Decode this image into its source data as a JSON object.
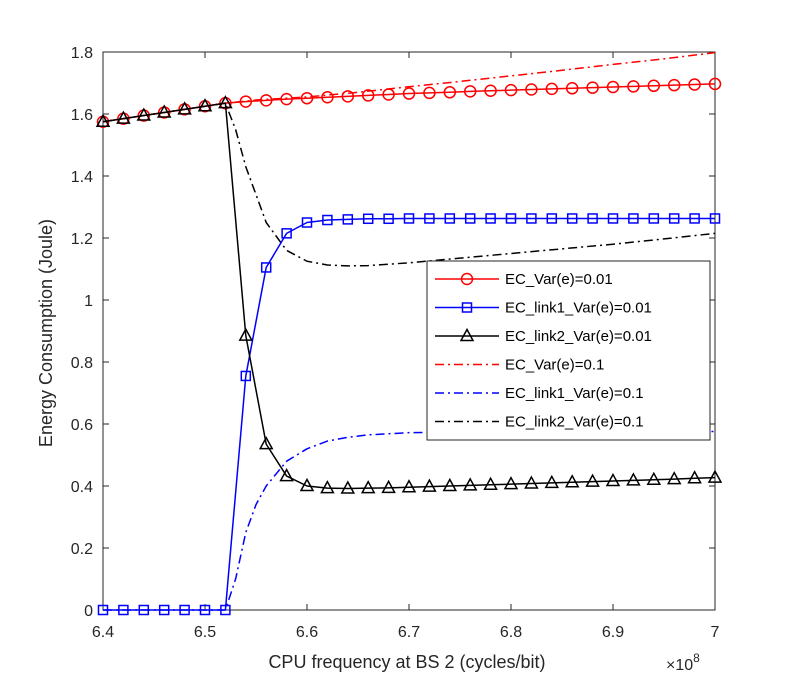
{
  "chart_data": {
    "type": "line",
    "title": "",
    "xlabel": "CPU frequency at BS 2 (cycles/bit)",
    "ylabel": "Energy Consumption (Joule)",
    "x_exponent_label": "×10",
    "x_exponent_power": "8",
    "xlim": [
      6.4,
      7.0
    ],
    "ylim": [
      0,
      1.8
    ],
    "xticks": [
      6.4,
      6.5,
      6.6,
      6.7,
      6.8,
      6.9,
      7.0
    ],
    "xtick_labels": [
      "6.4",
      "6.5",
      "6.6",
      "6.7",
      "6.8",
      "6.9",
      "7"
    ],
    "yticks": [
      0,
      0.2,
      0.4,
      0.6,
      0.8,
      1.0,
      1.2,
      1.4,
      1.6,
      1.8
    ],
    "ytick_labels": [
      "0",
      "0.2",
      "0.4",
      "0.6",
      "0.8",
      "1",
      "1.2",
      "1.4",
      "1.6",
      "1.8"
    ],
    "grid": false,
    "legend_position": "center-right",
    "series": [
      {
        "name": "EC_Var(e)=0.01",
        "color": "#ff0000",
        "line": "solid",
        "marker": "circle",
        "x": [
          6.4,
          6.42,
          6.44,
          6.46,
          6.48,
          6.5,
          6.52,
          6.54,
          6.56,
          6.58,
          6.6,
          6.62,
          6.64,
          6.66,
          6.68,
          6.7,
          6.72,
          6.74,
          6.76,
          6.78,
          6.8,
          6.82,
          6.84,
          6.86,
          6.88,
          6.9,
          6.92,
          6.94,
          6.96,
          6.98,
          7.0
        ],
        "y": [
          1.575,
          1.585,
          1.595,
          1.605,
          1.615,
          1.625,
          1.635,
          1.64,
          1.644,
          1.648,
          1.651,
          1.654,
          1.657,
          1.66,
          1.663,
          1.666,
          1.668,
          1.67,
          1.673,
          1.675,
          1.677,
          1.679,
          1.681,
          1.683,
          1.685,
          1.687,
          1.689,
          1.691,
          1.693,
          1.695,
          1.697
        ]
      },
      {
        "name": "EC_link1_Var(e)=0.01",
        "color": "#0000ff",
        "line": "solid",
        "marker": "square",
        "x": [
          6.4,
          6.42,
          6.44,
          6.46,
          6.48,
          6.5,
          6.52,
          6.54,
          6.56,
          6.58,
          6.6,
          6.62,
          6.64,
          6.66,
          6.68,
          6.7,
          6.72,
          6.74,
          6.76,
          6.78,
          6.8,
          6.82,
          6.84,
          6.86,
          6.88,
          6.9,
          6.92,
          6.94,
          6.96,
          6.98,
          7.0
        ],
        "y": [
          0,
          0,
          0,
          0,
          0,
          0,
          0,
          0.755,
          1.105,
          1.215,
          1.25,
          1.258,
          1.26,
          1.262,
          1.262,
          1.263,
          1.263,
          1.263,
          1.263,
          1.263,
          1.263,
          1.263,
          1.263,
          1.263,
          1.263,
          1.263,
          1.263,
          1.263,
          1.263,
          1.263,
          1.263
        ]
      },
      {
        "name": "EC_link2_Var(e)=0.01",
        "color": "#000000",
        "line": "solid",
        "marker": "triangle",
        "x": [
          6.4,
          6.42,
          6.44,
          6.46,
          6.48,
          6.5,
          6.52,
          6.54,
          6.56,
          6.58,
          6.6,
          6.62,
          6.64,
          6.66,
          6.68,
          6.7,
          6.72,
          6.74,
          6.76,
          6.78,
          6.8,
          6.82,
          6.84,
          6.86,
          6.88,
          6.9,
          6.92,
          6.94,
          6.96,
          6.98,
          7.0
        ],
        "y": [
          1.575,
          1.585,
          1.595,
          1.605,
          1.615,
          1.625,
          1.635,
          0.885,
          0.535,
          0.432,
          0.4,
          0.393,
          0.392,
          0.393,
          0.394,
          0.396,
          0.398,
          0.4,
          0.402,
          0.404,
          0.406,
          0.408,
          0.41,
          0.412,
          0.414,
          0.416,
          0.418,
          0.42,
          0.422,
          0.425,
          0.427
        ]
      },
      {
        "name": "EC_Var(e)=0.1",
        "color": "#ff0000",
        "line": "dashdot",
        "marker": "none",
        "x": [
          6.4,
          6.45,
          6.5,
          6.52,
          6.55,
          6.6,
          6.65,
          6.7,
          6.75,
          6.8,
          6.85,
          6.9,
          6.95,
          7.0
        ],
        "y": [
          1.575,
          1.6,
          1.625,
          1.635,
          1.645,
          1.655,
          1.67,
          1.688,
          1.705,
          1.723,
          1.741,
          1.76,
          1.778,
          1.798
        ]
      },
      {
        "name": "EC_link1_Var(e)=0.1",
        "color": "#0000ff",
        "line": "dashdot",
        "marker": "none",
        "x": [
          6.4,
          6.45,
          6.5,
          6.52,
          6.53,
          6.54,
          6.55,
          6.56,
          6.58,
          6.6,
          6.62,
          6.64,
          6.66,
          6.7,
          6.75,
          6.8,
          6.85,
          6.9,
          6.95,
          7.0
        ],
        "y": [
          0,
          0,
          0,
          0,
          0.1,
          0.25,
          0.34,
          0.4,
          0.48,
          0.52,
          0.545,
          0.557,
          0.565,
          0.572,
          0.574,
          0.575,
          0.575,
          0.576,
          0.576,
          0.576
        ]
      },
      {
        "name": "EC_link2_Var(e)=0.1",
        "color": "#000000",
        "line": "dashdot",
        "marker": "none",
        "x": [
          6.4,
          6.45,
          6.5,
          6.52,
          6.53,
          6.54,
          6.55,
          6.56,
          6.58,
          6.6,
          6.62,
          6.64,
          6.66,
          6.7,
          6.75,
          6.8,
          6.85,
          6.9,
          6.95,
          7.0
        ],
        "y": [
          1.575,
          1.6,
          1.625,
          1.635,
          1.55,
          1.43,
          1.34,
          1.25,
          1.16,
          1.125,
          1.113,
          1.11,
          1.111,
          1.12,
          1.135,
          1.15,
          1.165,
          1.18,
          1.197,
          1.215
        ]
      }
    ]
  }
}
